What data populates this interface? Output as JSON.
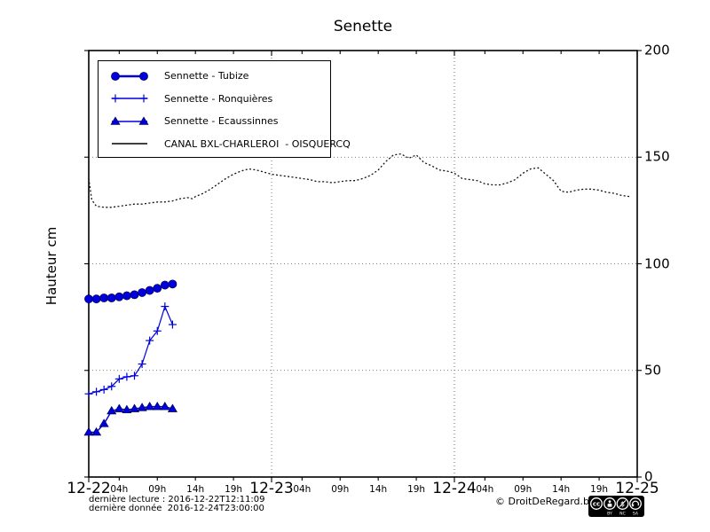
{
  "title": "Senette",
  "ylabel": "Hauteur cm",
  "legend": {
    "items": [
      {
        "label": "Sennette - Tubize",
        "marker": "circle",
        "color": "#0000dd"
      },
      {
        "label": "Sennette - Ronquières",
        "marker": "plus",
        "color": "#0000dd"
      },
      {
        "label": "Sennette - Ecaussinnes",
        "marker": "triangle",
        "color": "#0000dd"
      },
      {
        "label": "CANAL BXL-CHARLEROI  - OISQUERCQ",
        "marker": "none",
        "color": "#000000"
      }
    ]
  },
  "footer": {
    "last_reading": "dernière lecture : 2016-12-22T12:11:09",
    "last_data": "dernière donnée  2016-12-24T23:00:00",
    "copyright": "© DroitDeRegard.be",
    "cc_badge_letters": [
      "BY",
      "NC",
      "SA"
    ]
  },
  "chart_data": {
    "type": "line",
    "title": "Senette",
    "ylabel": "Hauteur cm",
    "y_unit": "cm",
    "x_unit": "hours since 2016-12-22T00:00",
    "xlim": [
      0,
      72
    ],
    "ylim": [
      0,
      200
    ],
    "grid": {
      "y_values": [
        50,
        100,
        150
      ],
      "x_hours": [
        24,
        48
      ]
    },
    "y_ticks": [
      0,
      50,
      100,
      150,
      200
    ],
    "x_day_ticks": [
      {
        "hour": 0,
        "label": "12-22"
      },
      {
        "hour": 24,
        "label": "12-23"
      },
      {
        "hour": 48,
        "label": "12-24"
      },
      {
        "hour": 72,
        "label": "12-25"
      }
    ],
    "x_hour_ticks": [
      {
        "hour": 4,
        "label": "04h"
      },
      {
        "hour": 9,
        "label": "09h"
      },
      {
        "hour": 14,
        "label": "14h"
      },
      {
        "hour": 19,
        "label": "19h"
      },
      {
        "hour": 28,
        "label": "04h"
      },
      {
        "hour": 33,
        "label": "09h"
      },
      {
        "hour": 38,
        "label": "14h"
      },
      {
        "hour": 43,
        "label": "19h"
      },
      {
        "hour": 52,
        "label": "04h"
      },
      {
        "hour": 57,
        "label": "09h"
      },
      {
        "hour": 62,
        "label": "14h"
      },
      {
        "hour": 67,
        "label": "19h"
      }
    ],
    "series": [
      {
        "name": "Sennette - Tubize",
        "color": "#0000dd",
        "marker": "circle",
        "line_width": 2.4,
        "line_style": "solid",
        "points": [
          [
            0,
            83.5
          ],
          [
            1,
            83.5
          ],
          [
            2,
            84
          ],
          [
            3,
            84
          ],
          [
            4,
            84.5
          ],
          [
            5,
            85
          ],
          [
            6,
            85.5
          ],
          [
            7,
            86.5
          ],
          [
            8,
            87.5
          ],
          [
            9,
            88.5
          ],
          [
            10,
            90
          ],
          [
            11,
            90.5
          ]
        ]
      },
      {
        "name": "Sennette - Ronquières",
        "color": "#0000dd",
        "marker": "plus",
        "line_width": 1.2,
        "line_style": "solid",
        "points": [
          [
            0,
            39
          ],
          [
            1,
            40
          ],
          [
            2,
            41
          ],
          [
            3,
            42.5
          ],
          [
            4,
            46
          ],
          [
            5,
            47
          ],
          [
            6,
            47.5
          ],
          [
            7,
            53
          ],
          [
            8,
            64
          ],
          [
            9,
            68.5
          ],
          [
            10,
            80
          ],
          [
            11,
            71.5
          ]
        ]
      },
      {
        "name": "Sennette - Ecaussinnes",
        "color": "#0000dd",
        "marker": "triangle",
        "line_width": 1.4,
        "line_style": "solid",
        "points": [
          [
            0,
            21
          ],
          [
            1,
            21
          ],
          [
            2,
            25
          ],
          [
            3,
            31
          ],
          [
            4,
            32
          ],
          [
            5,
            31.5
          ],
          [
            6,
            32
          ],
          [
            7,
            32.5
          ],
          [
            8,
            33
          ],
          [
            9,
            33
          ],
          [
            10,
            33
          ],
          [
            11,
            32
          ]
        ]
      },
      {
        "name": "CANAL BXL-CHARLEROI - OISQUERCQ",
        "color": "#111111",
        "marker": "none",
        "line_width": 1.3,
        "line_style": "dotted",
        "points": [
          [
            0,
            140
          ],
          [
            0.4,
            130
          ],
          [
            1,
            127
          ],
          [
            2,
            126.5
          ],
          [
            3,
            126.5
          ],
          [
            4,
            127
          ],
          [
            5,
            127.5
          ],
          [
            6,
            128
          ],
          [
            7,
            128
          ],
          [
            8,
            128.5
          ],
          [
            9,
            129
          ],
          [
            10,
            129
          ],
          [
            11,
            129.5
          ],
          [
            12,
            130.5
          ],
          [
            13,
            131
          ],
          [
            13.6,
            130.5
          ],
          [
            14,
            131.5
          ],
          [
            15,
            133
          ],
          [
            16,
            135
          ],
          [
            17,
            137.5
          ],
          [
            18,
            140
          ],
          [
            19,
            142
          ],
          [
            20,
            143.5
          ],
          [
            21,
            144.5
          ],
          [
            22,
            144
          ],
          [
            23,
            143
          ],
          [
            24,
            142
          ],
          [
            25,
            141.5
          ],
          [
            26,
            141
          ],
          [
            27,
            140.5
          ],
          [
            28,
            140
          ],
          [
            29,
            139.5
          ],
          [
            30,
            138.5
          ],
          [
            31,
            138.5
          ],
          [
            32,
            138
          ],
          [
            33,
            138.5
          ],
          [
            34,
            139
          ],
          [
            35,
            139
          ],
          [
            36,
            140
          ],
          [
            37,
            141.5
          ],
          [
            38,
            144
          ],
          [
            39,
            148
          ],
          [
            40,
            151
          ],
          [
            41,
            151.5
          ],
          [
            42,
            149.5
          ],
          [
            43,
            151
          ],
          [
            44,
            147.5
          ],
          [
            45,
            146
          ],
          [
            46,
            144
          ],
          [
            47,
            143.5
          ],
          [
            48,
            142.5
          ],
          [
            49,
            140
          ],
          [
            50,
            139.5
          ],
          [
            51,
            139
          ],
          [
            52,
            137.5
          ],
          [
            53,
            137
          ],
          [
            54,
            137
          ],
          [
            55,
            138
          ],
          [
            56,
            139.5
          ],
          [
            57,
            142.5
          ],
          [
            58,
            144.5
          ],
          [
            59,
            145
          ],
          [
            60,
            142
          ],
          [
            61,
            139
          ],
          [
            62,
            134
          ],
          [
            63,
            133.5
          ],
          [
            64,
            134.5
          ],
          [
            65,
            135
          ],
          [
            66,
            135
          ],
          [
            67,
            134.5
          ],
          [
            68,
            133.5
          ],
          [
            69,
            133
          ],
          [
            70,
            132
          ],
          [
            71,
            131.5
          ]
        ]
      }
    ]
  }
}
